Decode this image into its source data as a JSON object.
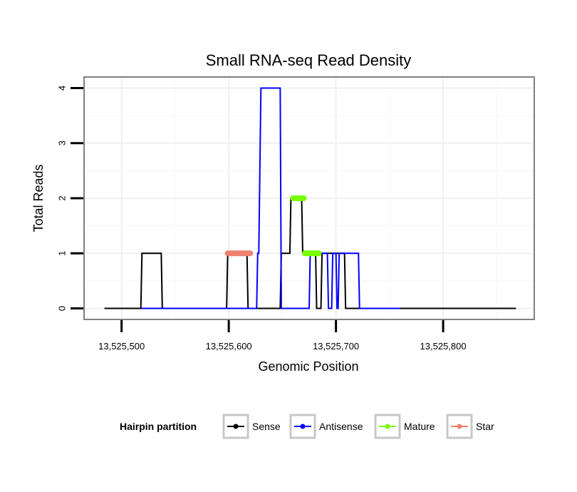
{
  "chart_data": {
    "type": "line",
    "title": "Small RNA-seq Read Density",
    "xlabel": "Genomic Position",
    "ylabel": "Total Reads",
    "xlim": [
      13525465,
      13525885
    ],
    "ylim": [
      -0.2,
      4.2
    ],
    "x_ticks": [
      13525500,
      13525600,
      13525700,
      13525800
    ],
    "x_tick_labels": [
      "13,525,500",
      "13,525,600",
      "13,525,700",
      "13,525,800"
    ],
    "y_ticks": [
      0,
      1,
      2,
      3,
      4
    ],
    "y_tick_labels": [
      "0",
      "1",
      "2",
      "3",
      "4"
    ],
    "grid": true,
    "legend": {
      "title": "Hairpin partition",
      "position": "bottom",
      "entries": [
        "Sense",
        "Antisense",
        "Mature",
        "Star"
      ]
    },
    "series": [
      {
        "name": "Sense",
        "color": "#000000",
        "points": [
          [
            13525484,
            0
          ],
          [
            13525518,
            0
          ],
          [
            13525519,
            1
          ],
          [
            13525537,
            1
          ],
          [
            13525538,
            0
          ],
          [
            13525598,
            0
          ],
          [
            13525599,
            1
          ],
          [
            13525617,
            1
          ],
          [
            13525618,
            0
          ],
          [
            13525648,
            0
          ],
          [
            13525649,
            1
          ],
          [
            13525657,
            1
          ],
          [
            13525658,
            2
          ],
          [
            13525668,
            2
          ],
          [
            13525669,
            1
          ],
          [
            13525681,
            1
          ],
          [
            13525682,
            0
          ],
          [
            13525686,
            0
          ],
          [
            13525687,
            1
          ],
          [
            13525708,
            1
          ],
          [
            13525709,
            0
          ],
          [
            13525868,
            0
          ]
        ]
      },
      {
        "name": "Antisense",
        "color": "#0000ff",
        "points": [
          [
            13525518,
            0
          ],
          [
            13525626,
            0
          ],
          [
            13525627,
            1
          ],
          [
            13525628,
            1
          ],
          [
            13525630,
            4
          ],
          [
            13525648,
            4
          ],
          [
            13525649,
            0
          ],
          [
            13525675,
            0
          ],
          [
            13525676,
            1
          ],
          [
            13525692,
            1
          ],
          [
            13525693,
            0
          ],
          [
            13525696,
            0
          ],
          [
            13525697,
            1
          ],
          [
            13525700,
            1
          ],
          [
            13525701,
            0
          ],
          [
            13525702,
            0
          ],
          [
            13525703,
            1
          ],
          [
            13525721,
            1
          ],
          [
            13525722,
            0
          ],
          [
            13525760,
            0
          ]
        ]
      },
      {
        "name": "Mature",
        "color": "#77ff00",
        "points": [
          [
            13525660,
            2
          ],
          [
            13525670,
            2
          ],
          null,
          [
            13525671,
            1
          ],
          [
            13525684,
            1
          ]
        ]
      },
      {
        "name": "Star",
        "color": "#f08070",
        "points": [
          [
            13525599,
            1
          ],
          [
            13525620,
            1
          ]
        ]
      }
    ]
  }
}
